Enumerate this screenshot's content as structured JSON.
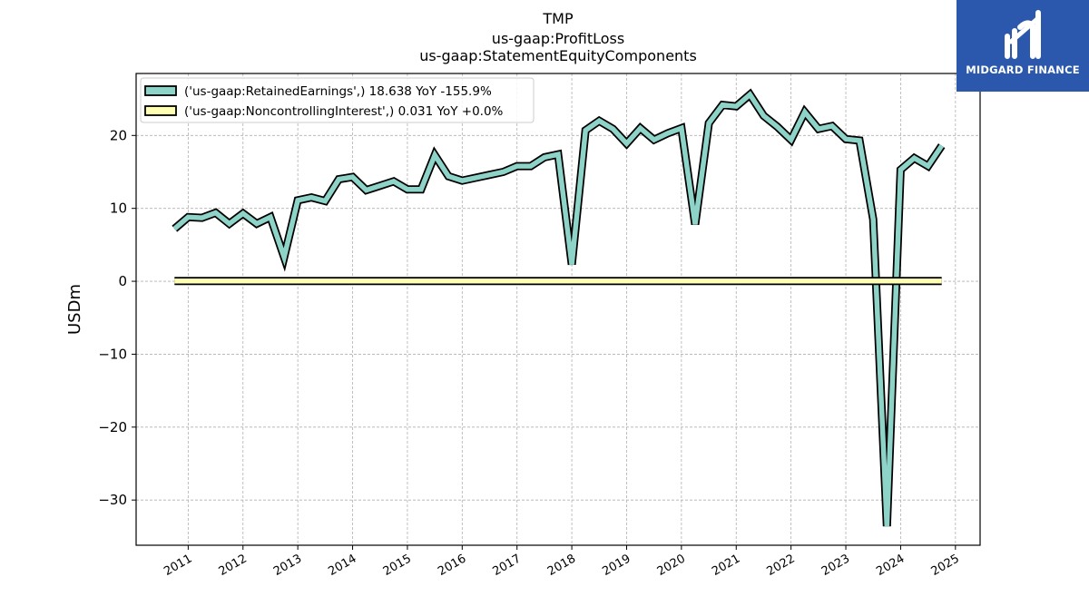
{
  "logo": {
    "text": "MIDGARD FINANCE",
    "color": "#2b58ad"
  },
  "chart_data": {
    "type": "line",
    "title_lines": [
      "TMP",
      "us-gaap:ProfitLoss",
      "us-gaap:StatementEquityComponents"
    ],
    "ylabel": "USDm",
    "xlabel": "",
    "grid": true,
    "legend_position": "top-left",
    "ylim": [
      -36.2,
      28.5
    ],
    "xlim": [
      2010.05,
      2025.45
    ],
    "y_ticks": [
      -30,
      -20,
      -10,
      0,
      10,
      20
    ],
    "y_tick_labels": [
      "−30",
      "−20",
      "−10",
      "0",
      "10",
      "20"
    ],
    "x_ticks": [
      2011,
      2012,
      2013,
      2014,
      2015,
      2016,
      2017,
      2018,
      2019,
      2020,
      2021,
      2022,
      2023,
      2024,
      2025
    ],
    "x_tick_labels": [
      "2011",
      "2012",
      "2013",
      "2014",
      "2015",
      "2016",
      "2017",
      "2018",
      "2019",
      "2020",
      "2021",
      "2022",
      "2023",
      "2024",
      "2025"
    ],
    "series": [
      {
        "name": "('us-gaap:RetainedEarnings',) 18.638 YoY -155.9%",
        "color": "#8dd3c7",
        "x": [
          2010.75,
          2011.0,
          2011.25,
          2011.5,
          2011.75,
          2012.0,
          2012.25,
          2012.5,
          2012.75,
          2013.0,
          2013.25,
          2013.5,
          2013.75,
          2014.0,
          2014.25,
          2014.5,
          2014.75,
          2015.0,
          2015.25,
          2015.5,
          2015.75,
          2016.0,
          2016.25,
          2016.5,
          2016.75,
          2017.0,
          2017.25,
          2017.5,
          2017.75,
          2018.0,
          2018.25,
          2018.5,
          2018.75,
          2019.0,
          2019.25,
          2019.5,
          2019.75,
          2020.0,
          2020.25,
          2020.5,
          2020.75,
          2021.0,
          2021.25,
          2021.5,
          2021.75,
          2022.0,
          2022.25,
          2022.5,
          2022.75,
          2023.0,
          2023.25,
          2023.5,
          2023.75,
          2024.0,
          2024.25,
          2024.5,
          2024.75
        ],
        "y": [
          7.2,
          8.8,
          8.7,
          9.4,
          7.9,
          9.3,
          7.9,
          8.8,
          3.3,
          11.1,
          11.5,
          11.0,
          14.0,
          14.3,
          12.5,
          13.1,
          13.7,
          12.6,
          12.6,
          17.3,
          14.4,
          13.8,
          14.2,
          14.6,
          15.0,
          15.8,
          15.8,
          17.0,
          17.4,
          2.3,
          20.7,
          22.0,
          20.9,
          18.9,
          21.0,
          19.4,
          20.3,
          21.0,
          7.8,
          21.7,
          24.2,
          24.0,
          25.6,
          22.7,
          21.2,
          19.4,
          23.2,
          20.9,
          21.3,
          19.5,
          19.3,
          8.5,
          -33.6,
          15.3,
          16.9,
          15.8,
          18.6
        ]
      },
      {
        "name": "('us-gaap:NoncontrollingInterest',) 0.031 YoY +0.0%",
        "color": "#ffffb3",
        "x": [
          2010.75,
          2024.75
        ],
        "y": [
          0.031,
          0.031
        ]
      }
    ]
  }
}
